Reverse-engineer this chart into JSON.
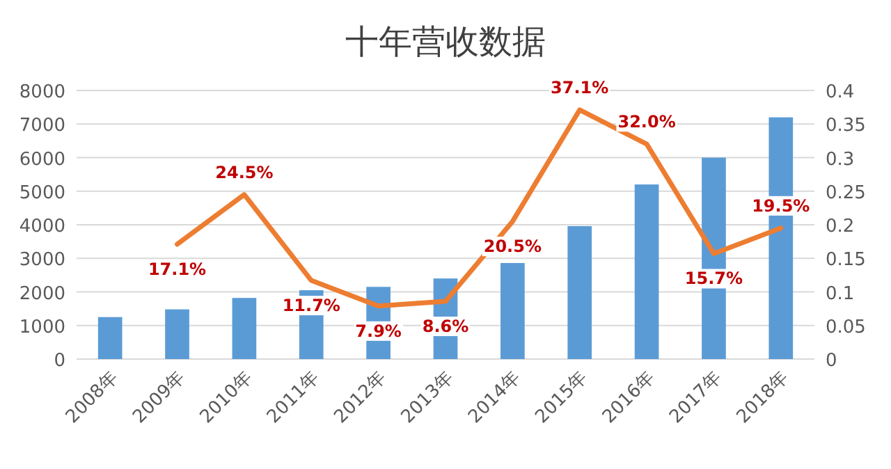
{
  "chart_data": {
    "type": "bar",
    "title": "十年营收数据",
    "categories": [
      "2008年",
      "2009年",
      "2010年",
      "2011年",
      "2012年",
      "2013年",
      "2014年",
      "2015年",
      "2016年",
      "2017年",
      "2018年"
    ],
    "series": [
      {
        "color": "#5b9bd5",
        "values": [
          1250,
          1480,
          1820,
          2050,
          2150,
          2400,
          2860,
          3960,
          5200,
          6000,
          7200
        ]
      },
      {
        "type": "line",
        "axis": "y2",
        "color": "#ed7d31",
        "values": [
          null,
          0.171,
          0.245,
          0.117,
          0.079,
          0.086,
          0.205,
          0.371,
          0.32,
          0.157,
          0.195
        ],
        "value_labels": [
          null,
          "17.1%",
          "24.5%",
          "11.7%",
          "7.9%",
          "8.6%",
          "20.5%",
          "37.1%",
          "32.0%",
          "15.7%",
          "19.5%"
        ]
      }
    ],
    "ylim": [
      0,
      8000
    ],
    "yticks": [
      0,
      1000,
      2000,
      3000,
      4000,
      5000,
      6000,
      7000,
      8000
    ],
    "y2lim": [
      0,
      0.4
    ],
    "y2ticks": [
      0,
      0.05,
      0.1,
      0.15,
      0.2,
      0.25,
      0.3,
      0.35,
      0.4
    ],
    "grid": "y",
    "legend": false,
    "marker": "none",
    "line_style": "solid"
  }
}
